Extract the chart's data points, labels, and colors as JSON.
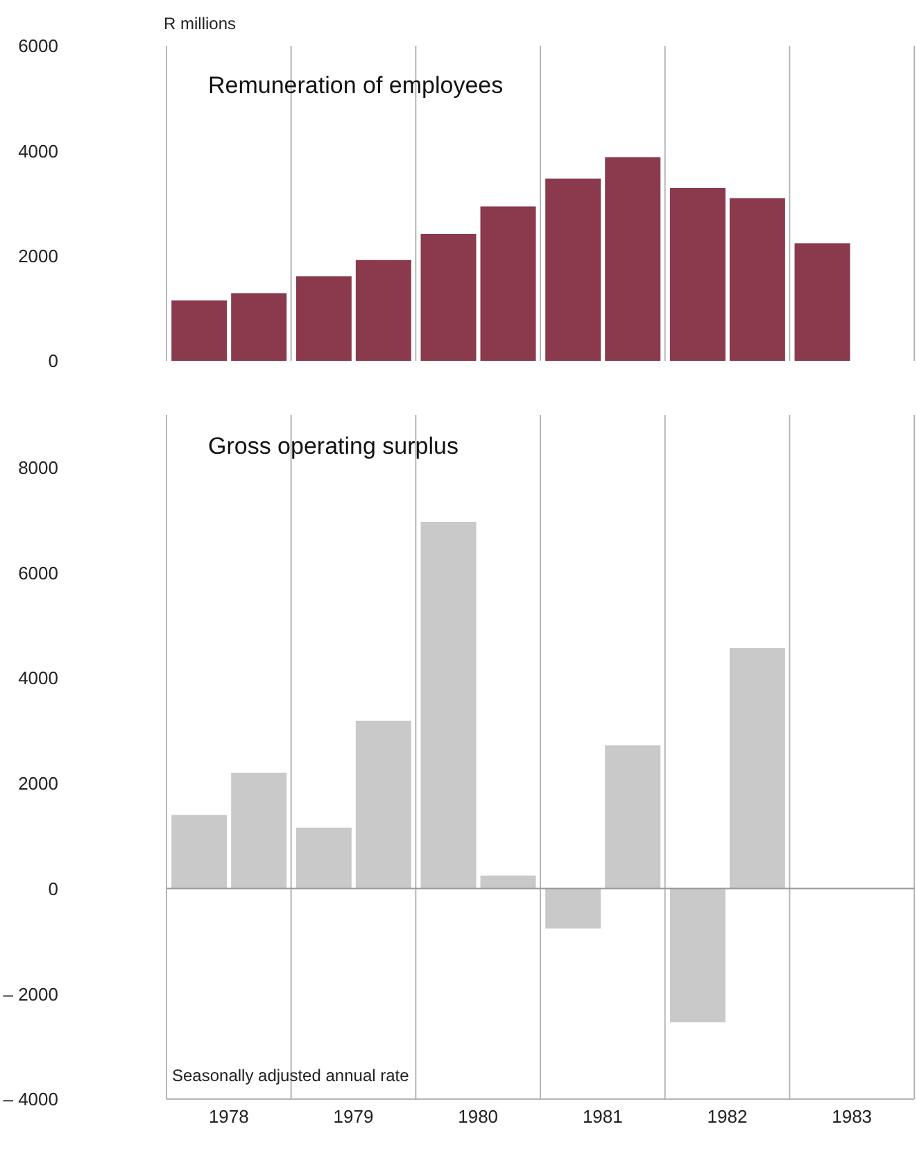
{
  "chart_data": [
    {
      "type": "bar",
      "title": "Remuneration of employees",
      "ylabel": "R millions",
      "categories": [
        "1978",
        "1979",
        "1980",
        "1981",
        "1982",
        "1983"
      ],
      "series": [
        {
          "color": "#8a3a4c",
          "values": [
            1150,
            1610,
            2420,
            3470,
            3290,
            2240
          ]
        },
        {
          "color": "#8a3a4c",
          "values": [
            1290,
            1920,
            2940,
            3880,
            3100,
            null
          ]
        }
      ],
      "ylim": [
        0,
        6000
      ],
      "yticks": [
        0,
        2000,
        4000,
        6000
      ],
      "grid": "x",
      "tick_labels": "y"
    },
    {
      "type": "bar",
      "title": "Gross operating surplus",
      "categories": [
        "1978",
        "1979",
        "1980",
        "1981",
        "1982",
        "1983"
      ],
      "series": [
        {
          "color": "#c9c9c9",
          "values": [
            1400,
            1160,
            6970,
            -760,
            -2540,
            null
          ]
        },
        {
          "color": "#c9c9c9",
          "values": [
            2200,
            3190,
            250,
            2720,
            4570,
            null
          ]
        }
      ],
      "ylim": [
        -4000,
        9000
      ],
      "yticks": [
        {
          "value": -4000,
          "label": "– 4000"
        },
        {
          "value": -2000,
          "label": "– 2000"
        },
        0,
        2000,
        4000,
        6000,
        8000
      ],
      "grid": "x",
      "ref_lines": [
        {
          "axis": "y",
          "value": 0
        }
      ],
      "annotations": [
        "Seasonally adjusted annual rate"
      ]
    }
  ]
}
